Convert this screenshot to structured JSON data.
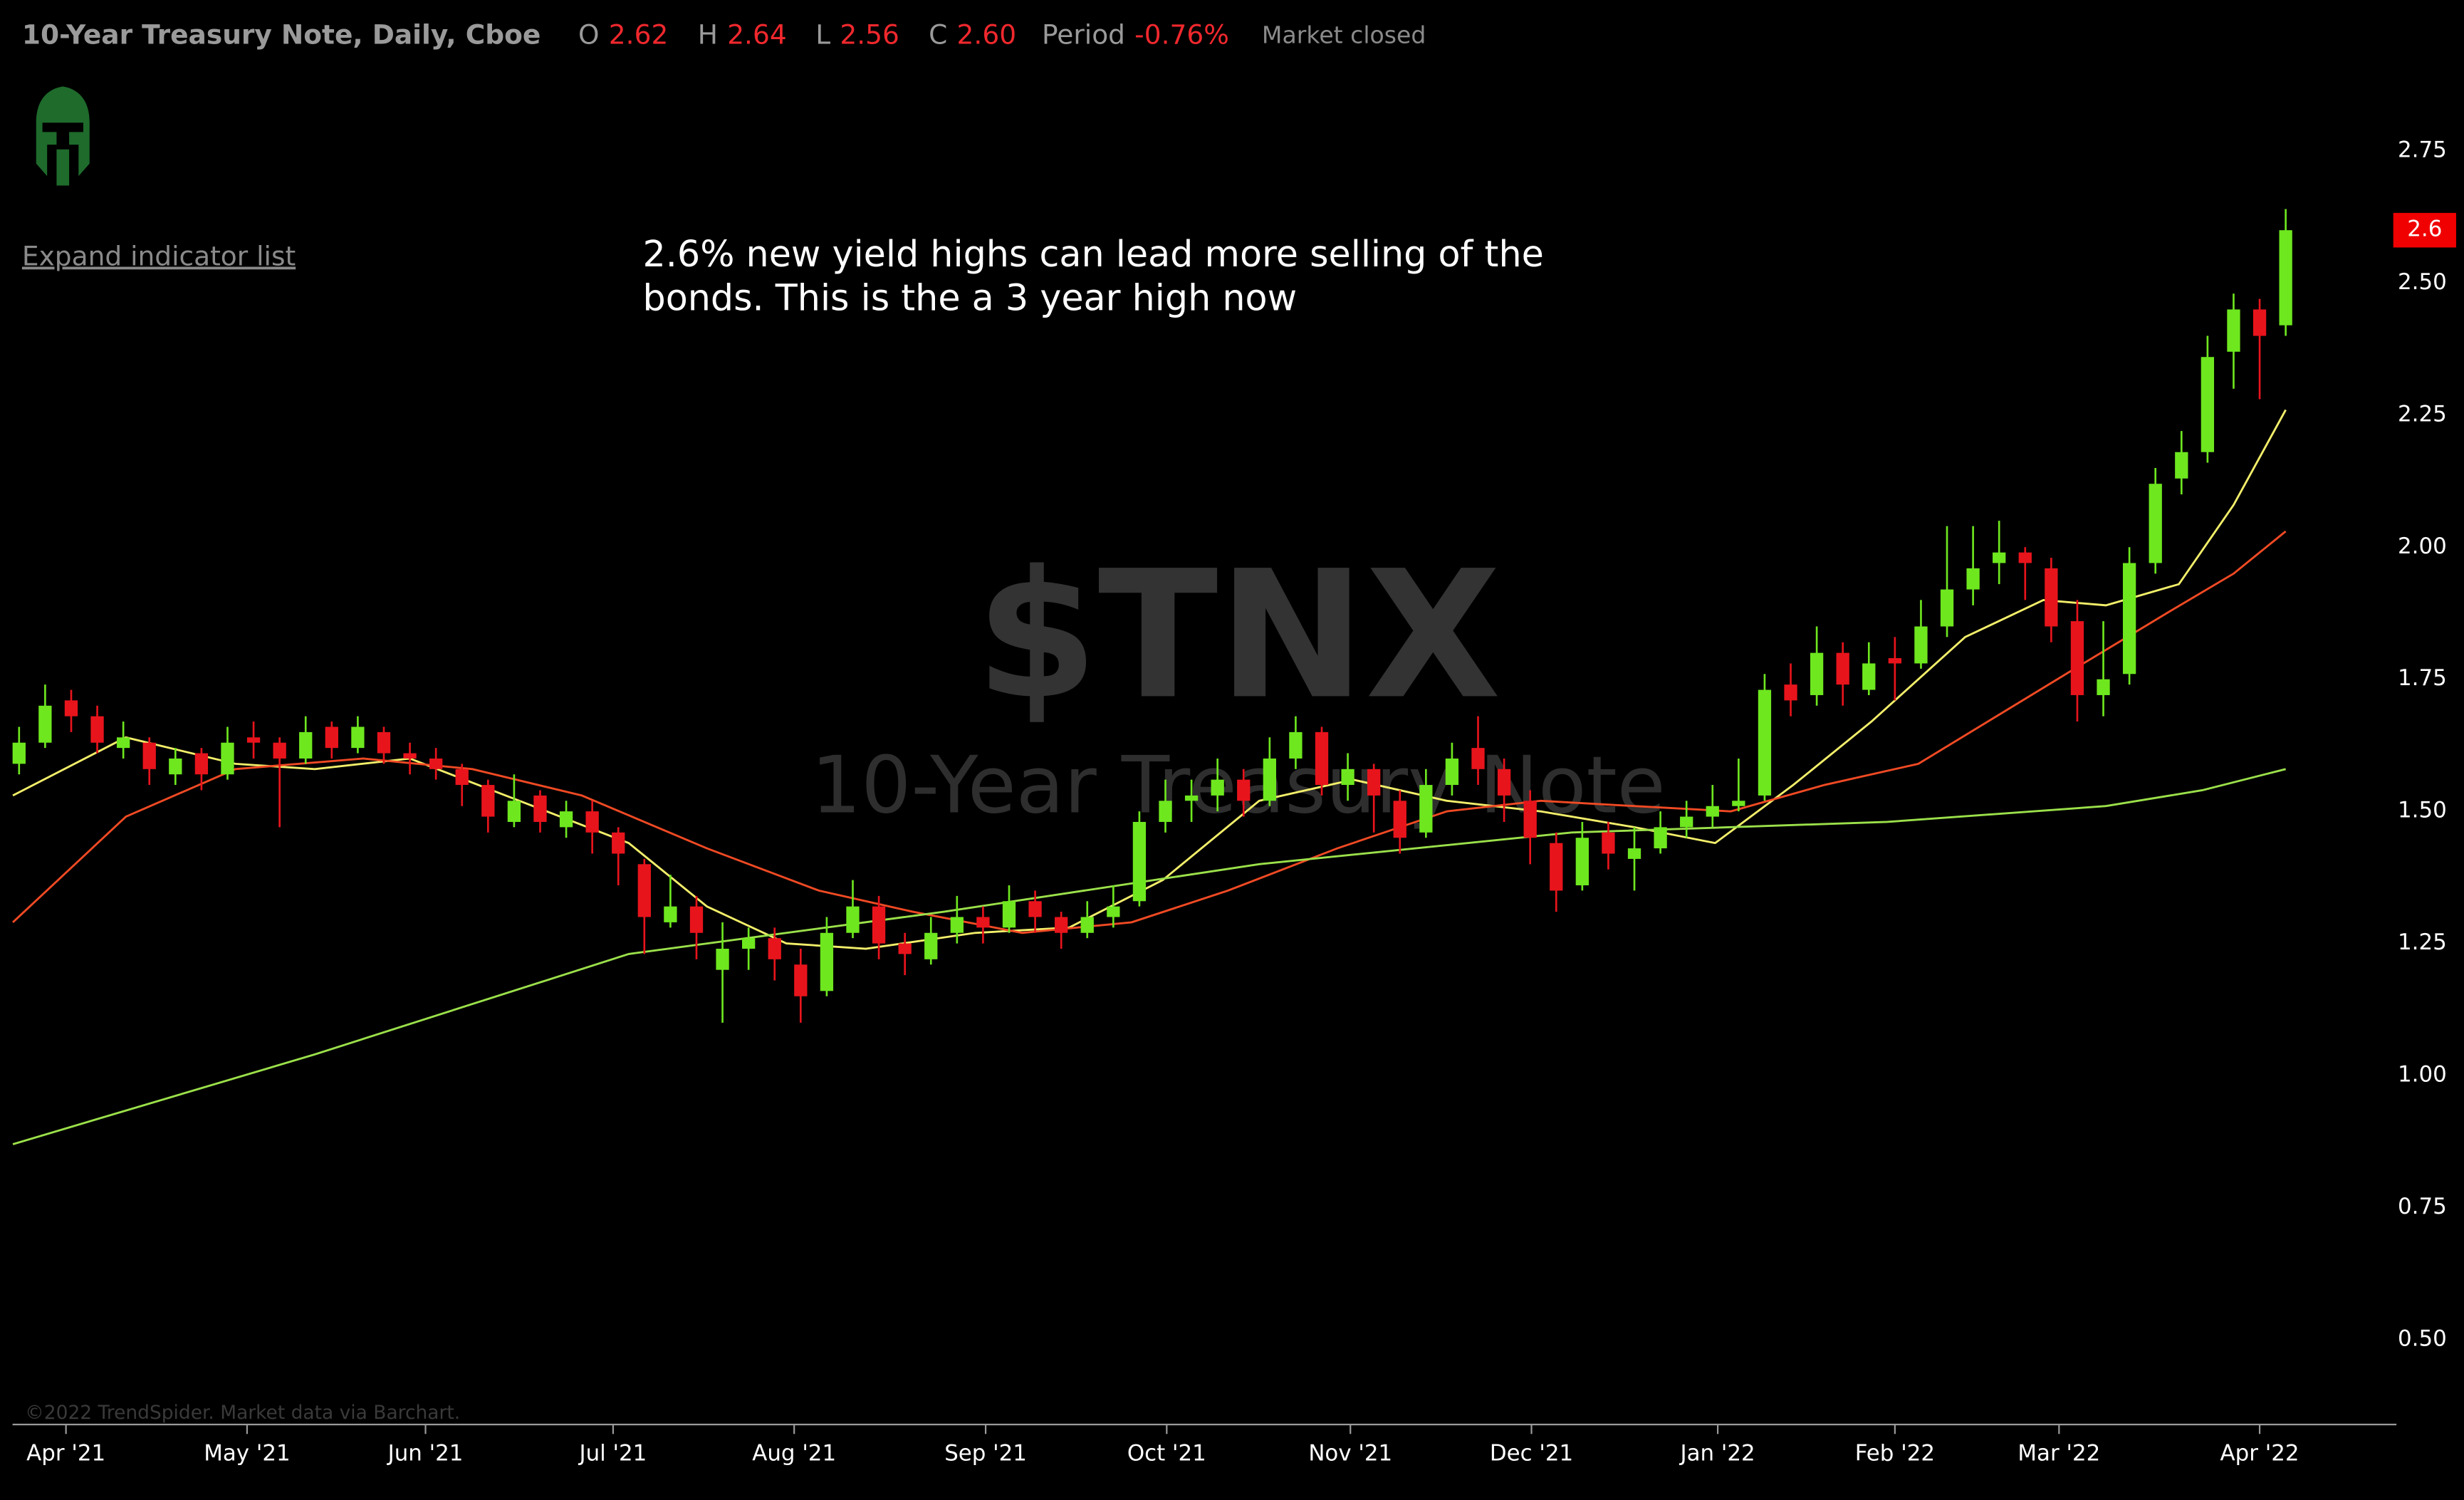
{
  "chart_data": {
    "type": "candlestick",
    "title": "10-Year Treasury Note, Daily, Cboe",
    "quote": [
      {
        "label": "O",
        "value": "2.62"
      },
      {
        "label": "H",
        "value": "2.64"
      },
      {
        "label": "L",
        "value": "2.56"
      },
      {
        "label": "C",
        "value": "2.60"
      },
      {
        "label": "Period",
        "value": "-0.76%"
      }
    ],
    "status": "Market closed",
    "indicator_toggle": "Expand indicator list",
    "annotation": [
      "2.6% new yield highs can lead more selling of the",
      "bonds. This is the a 3 year high now"
    ],
    "watermark_symbol": "$TNX",
    "watermark_name": "10-Year Treasury Note",
    "credit": "©2022 TrendSpider. Market data via Barchart.",
    "last_price": 2.6,
    "last_price_color": "#f00000",
    "up_color": "#6ee71f",
    "down_color": "#e8141c",
    "ohlc": [
      [
        1.59,
        1.66,
        1.57,
        1.63
      ],
      [
        1.63,
        1.74,
        1.62,
        1.7
      ],
      [
        1.71,
        1.73,
        1.65,
        1.68
      ],
      [
        1.68,
        1.7,
        1.61,
        1.63
      ],
      [
        1.62,
        1.67,
        1.6,
        1.64
      ],
      [
        1.63,
        1.64,
        1.55,
        1.58
      ],
      [
        1.57,
        1.62,
        1.55,
        1.6
      ],
      [
        1.61,
        1.62,
        1.54,
        1.57
      ],
      [
        1.57,
        1.66,
        1.56,
        1.63
      ],
      [
        1.64,
        1.67,
        1.6,
        1.63
      ],
      [
        1.63,
        1.64,
        1.47,
        1.6
      ],
      [
        1.6,
        1.68,
        1.59,
        1.65
      ],
      [
        1.66,
        1.67,
        1.6,
        1.62
      ],
      [
        1.62,
        1.68,
        1.61,
        1.66
      ],
      [
        1.65,
        1.66,
        1.59,
        1.61
      ],
      [
        1.61,
        1.63,
        1.57,
        1.6
      ],
      [
        1.6,
        1.62,
        1.56,
        1.58
      ],
      [
        1.58,
        1.59,
        1.51,
        1.55
      ],
      [
        1.55,
        1.56,
        1.46,
        1.49
      ],
      [
        1.48,
        1.57,
        1.47,
        1.52
      ],
      [
        1.53,
        1.54,
        1.46,
        1.48
      ],
      [
        1.47,
        1.52,
        1.45,
        1.5
      ],
      [
        1.5,
        1.52,
        1.42,
        1.46
      ],
      [
        1.46,
        1.47,
        1.36,
        1.42
      ],
      [
        1.4,
        1.41,
        1.23,
        1.3
      ],
      [
        1.29,
        1.38,
        1.28,
        1.32
      ],
      [
        1.32,
        1.34,
        1.22,
        1.27
      ],
      [
        1.2,
        1.29,
        1.1,
        1.24
      ],
      [
        1.24,
        1.28,
        1.2,
        1.26
      ],
      [
        1.26,
        1.28,
        1.18,
        1.22
      ],
      [
        1.21,
        1.24,
        1.1,
        1.15
      ],
      [
        1.16,
        1.3,
        1.15,
        1.27
      ],
      [
        1.27,
        1.37,
        1.26,
        1.32
      ],
      [
        1.32,
        1.34,
        1.22,
        1.25
      ],
      [
        1.25,
        1.27,
        1.19,
        1.23
      ],
      [
        1.22,
        1.3,
        1.21,
        1.27
      ],
      [
        1.27,
        1.34,
        1.25,
        1.3
      ],
      [
        1.3,
        1.32,
        1.25,
        1.28
      ],
      [
        1.28,
        1.36,
        1.27,
        1.33
      ],
      [
        1.33,
        1.35,
        1.27,
        1.3
      ],
      [
        1.3,
        1.31,
        1.24,
        1.27
      ],
      [
        1.27,
        1.33,
        1.26,
        1.3
      ],
      [
        1.3,
        1.36,
        1.28,
        1.32
      ],
      [
        1.33,
        1.5,
        1.32,
        1.48
      ],
      [
        1.48,
        1.56,
        1.46,
        1.52
      ],
      [
        1.52,
        1.56,
        1.48,
        1.53
      ],
      [
        1.53,
        1.6,
        1.5,
        1.56
      ],
      [
        1.56,
        1.58,
        1.49,
        1.52
      ],
      [
        1.52,
        1.64,
        1.51,
        1.6
      ],
      [
        1.6,
        1.68,
        1.58,
        1.65
      ],
      [
        1.65,
        1.66,
        1.53,
        1.55
      ],
      [
        1.55,
        1.61,
        1.52,
        1.58
      ],
      [
        1.58,
        1.59,
        1.46,
        1.53
      ],
      [
        1.52,
        1.54,
        1.42,
        1.45
      ],
      [
        1.46,
        1.58,
        1.45,
        1.55
      ],
      [
        1.55,
        1.63,
        1.53,
        1.6
      ],
      [
        1.62,
        1.68,
        1.55,
        1.58
      ],
      [
        1.58,
        1.6,
        1.48,
        1.53
      ],
      [
        1.52,
        1.54,
        1.4,
        1.45
      ],
      [
        1.44,
        1.46,
        1.31,
        1.35
      ],
      [
        1.36,
        1.48,
        1.35,
        1.45
      ],
      [
        1.46,
        1.48,
        1.39,
        1.42
      ],
      [
        1.41,
        1.47,
        1.35,
        1.43
      ],
      [
        1.43,
        1.5,
        1.42,
        1.47
      ],
      [
        1.47,
        1.52,
        1.45,
        1.49
      ],
      [
        1.49,
        1.55,
        1.47,
        1.51
      ],
      [
        1.51,
        1.6,
        1.5,
        1.52
      ],
      [
        1.53,
        1.76,
        1.52,
        1.73
      ],
      [
        1.74,
        1.78,
        1.68,
        1.71
      ],
      [
        1.72,
        1.85,
        1.7,
        1.8
      ],
      [
        1.8,
        1.82,
        1.7,
        1.74
      ],
      [
        1.73,
        1.82,
        1.72,
        1.78
      ],
      [
        1.79,
        1.83,
        1.71,
        1.78
      ],
      [
        1.78,
        1.9,
        1.77,
        1.85
      ],
      [
        1.85,
        2.04,
        1.83,
        1.92
      ],
      [
        1.92,
        2.04,
        1.89,
        1.96
      ],
      [
        1.97,
        2.05,
        1.93,
        1.99
      ],
      [
        1.99,
        2.0,
        1.9,
        1.97
      ],
      [
        1.96,
        1.98,
        1.82,
        1.85
      ],
      [
        1.86,
        1.9,
        1.67,
        1.72
      ],
      [
        1.72,
        1.86,
        1.68,
        1.75
      ],
      [
        1.76,
        2.0,
        1.74,
        1.97
      ],
      [
        1.97,
        2.15,
        1.95,
        2.12
      ],
      [
        2.13,
        2.22,
        2.1,
        2.18
      ],
      [
        2.18,
        2.4,
        2.16,
        2.36
      ],
      [
        2.37,
        2.48,
        2.3,
        2.45
      ],
      [
        2.45,
        2.47,
        2.28,
        2.4
      ],
      [
        2.42,
        2.64,
        2.4,
        2.6
      ]
    ],
    "moving_averages": [
      {
        "color": "#f2ee6a",
        "x": [
          -0.24,
          4.1,
          8.3,
          11.35,
          15.0,
          19.2,
          23.4,
          26.4,
          29.45,
          32.5,
          36.7,
          40.3,
          43.9,
          47.6,
          51.2,
          54.8,
          58.4,
          62.0,
          65.1,
          68.1,
          71.1,
          74.7,
          77.7,
          80.1,
          82.9,
          85.0,
          87
        ],
        "values": [
          1.53,
          1.64,
          1.59,
          1.58,
          1.6,
          1.52,
          1.44,
          1.32,
          1.25,
          1.24,
          1.27,
          1.28,
          1.37,
          1.52,
          1.56,
          1.52,
          1.5,
          1.47,
          1.44,
          1.55,
          1.67,
          1.83,
          1.9,
          1.89,
          1.93,
          2.08,
          2.26
        ]
      },
      {
        "color": "#f04a24",
        "x": [
          -0.24,
          4.1,
          8.3,
          13.2,
          17.4,
          21.6,
          26.4,
          30.7,
          34.3,
          38.5,
          42.7,
          46.4,
          50.6,
          54.8,
          58.4,
          62.0,
          65.7,
          69.3,
          72.9,
          75.9,
          78.9,
          82.6,
          85.0,
          87
        ],
        "values": [
          1.29,
          1.49,
          1.58,
          1.6,
          1.58,
          1.53,
          1.43,
          1.35,
          1.31,
          1.27,
          1.29,
          1.35,
          1.43,
          1.5,
          1.52,
          1.51,
          1.5,
          1.55,
          1.59,
          1.68,
          1.77,
          1.88,
          1.95,
          2.03
        ]
      },
      {
        "color": "#9be04a",
        "x": [
          -0.24,
          11.35,
          23.4,
          35.5,
          47.6,
          59.6,
          71.7,
          80.1,
          83.8,
          87
        ],
        "values": [
          0.87,
          1.04,
          1.23,
          1.31,
          1.4,
          1.46,
          1.48,
          1.51,
          1.54,
          1.58
        ]
      }
    ],
    "xlim": [
      -0.25,
      91.25
    ],
    "xticks": [
      {
        "value": 1.8,
        "label": "Apr '21"
      },
      {
        "value": 8.75,
        "label": "May '21"
      },
      {
        "value": 15.6,
        "label": "Jun '21"
      },
      {
        "value": 22.8,
        "label": "Jul '21"
      },
      {
        "value": 29.75,
        "label": "Aug '21"
      },
      {
        "value": 37.1,
        "label": "Sep '21"
      },
      {
        "value": 44.05,
        "label": "Oct '21"
      },
      {
        "value": 51.1,
        "label": "Nov '21"
      },
      {
        "value": 58.05,
        "label": "Dec '21"
      },
      {
        "value": 65.2,
        "label": "Jan '22"
      },
      {
        "value": 72.0,
        "label": "Feb '22"
      },
      {
        "value": 78.3,
        "label": "Mar '22"
      },
      {
        "value": 86.0,
        "label": "Apr '22"
      }
    ],
    "ylim": [
      0.34,
      2.9
    ],
    "yticks": [
      {
        "value": 0.5,
        "label": "0.50"
      },
      {
        "value": 0.75,
        "label": "0.75"
      },
      {
        "value": 1,
        "label": "1.00"
      },
      {
        "value": 1.25,
        "label": "1.25"
      },
      {
        "value": 1.5,
        "label": "1.50"
      },
      {
        "value": 1.75,
        "label": "1.75"
      },
      {
        "value": 2,
        "label": "2.00"
      },
      {
        "value": 2.25,
        "label": "2.25"
      },
      {
        "value": 2.5,
        "label": "2.50"
      },
      {
        "value": 2.75,
        "label": "2.75"
      }
    ]
  }
}
